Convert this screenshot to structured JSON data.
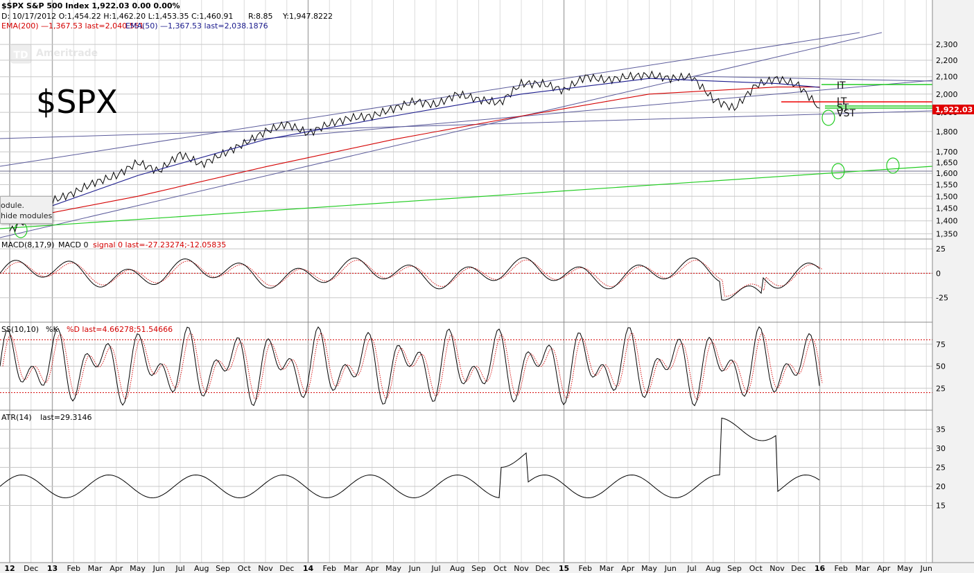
{
  "header": {
    "title": "$SPX S&P 500 Index  1,922.03  0.00  0.00%",
    "ohlc": "D: 10/17/2012  O:1,454.22  H:1,462.20  L:1,453.35  C:1,460.91",
    "r": "R:8.85",
    "y": "Y:1,947.8222",
    "ema200": "EMA(200) —1,367.53 last=2,040.551",
    "ema50": "EMA(50) —1,367.53 last=2,038.1876"
  },
  "watermark": {
    "logo_text": "Ameritrade",
    "logo_mark": "TD"
  },
  "big_label": "$SPX",
  "tooltip": {
    "line1": "odule.",
    "line2": "hide modules."
  },
  "price_badge": "1,922.03",
  "colors": {
    "price": "#000000",
    "ema200": "#d40000",
    "ema50": "#1a1a8c",
    "trend": "#5a5a9a",
    "green": "#22cc22",
    "red": "#ee0000",
    "grid": "#c8c8c8",
    "panel_bg": "#ffffff",
    "axis_bg": "#f2f2f2"
  },
  "chart_data": [
    {
      "type": "line",
      "title": "$SPX S&P 500 Index",
      "y_ticks": [
        "2,300",
        "2,200",
        "2,100",
        "2,000",
        "1,900",
        "1,800",
        "1,700",
        "1,650",
        "1,600",
        "1,550",
        "1,500",
        "1,450",
        "1,400",
        "1,350"
      ],
      "y_tick_values": [
        2300,
        2200,
        2100,
        2000,
        1900,
        1800,
        1700,
        1650,
        1600,
        1550,
        1500,
        1450,
        1400,
        1350
      ],
      "y_scale": "log",
      "ylim": [
        1330,
        2420
      ],
      "x_ticks": [
        "12",
        "Dec",
        "13",
        "Feb",
        "Mar",
        "Apr",
        "May",
        "Jun",
        "Jul",
        "Aug",
        "Sep",
        "Oct",
        "Nov",
        "Dec",
        "14",
        "Feb",
        "Mar",
        "Apr",
        "May",
        "Jun",
        "Jul",
        "Aug",
        "Sep",
        "Oct",
        "Nov",
        "Dec",
        "15",
        "Feb",
        "Mar",
        "Apr",
        "May",
        "Jun",
        "Jul",
        "Aug",
        "Sep",
        "Oct",
        "Nov",
        "Dec",
        "16",
        "Feb",
        "Mar",
        "Apr",
        "May",
        "Jun"
      ],
      "x_year_ticks": [
        "12",
        "13",
        "14",
        "15",
        "16"
      ],
      "series": [
        {
          "name": "$SPX",
          "x": [
            "2012-11",
            "2012-12",
            "2013-01",
            "2013-02",
            "2013-03",
            "2013-04",
            "2013-05",
            "2013-06",
            "2013-07",
            "2013-08",
            "2013-09",
            "2013-10",
            "2013-11",
            "2013-12",
            "2014-01",
            "2014-02",
            "2014-03",
            "2014-04",
            "2014-05",
            "2014-06",
            "2014-07",
            "2014-08",
            "2014-09",
            "2014-10",
            "2014-11",
            "2014-12",
            "2015-01",
            "2015-02",
            "2015-03",
            "2015-04",
            "2015-05",
            "2015-06",
            "2015-07",
            "2015-08",
            "2015-09",
            "2015-10",
            "2015-11",
            "2015-12",
            "2016-01"
          ],
          "values": [
            1360,
            1420,
            1480,
            1515,
            1560,
            1590,
            1650,
            1610,
            1690,
            1640,
            1690,
            1740,
            1800,
            1840,
            1790,
            1840,
            1870,
            1880,
            1920,
            1960,
            1940,
            2000,
            1970,
            1950,
            2060,
            2060,
            2020,
            2100,
            2080,
            2100,
            2110,
            2090,
            2100,
            1970,
            1920,
            2050,
            2090,
            2050,
            1922
          ]
        },
        {
          "name": "EMA(200)",
          "x": [
            "2012-11",
            "2013-05",
            "2013-11",
            "2014-05",
            "2014-11",
            "2015-05",
            "2015-11",
            "2016-01"
          ],
          "values": [
            1400,
            1500,
            1630,
            1760,
            1880,
            2000,
            2040,
            2040
          ]
        },
        {
          "name": "EMA(50)",
          "x": [
            "2012-11",
            "2013-05",
            "2013-11",
            "2014-05",
            "2014-11",
            "2015-05",
            "2015-11",
            "2016-01"
          ],
          "values": [
            1400,
            1590,
            1760,
            1880,
            2000,
            2090,
            2060,
            2038
          ]
        }
      ],
      "annotations": [
        "IT",
        "LT",
        "ST",
        "VST"
      ]
    },
    {
      "type": "line",
      "title": "MACD(8,17,9)",
      "legend": [
        "MACD 0",
        "signal 0 last=-27.23274;-12.05835"
      ],
      "y_ticks": [
        "25",
        "0",
        "-25"
      ],
      "ylim": [
        -50,
        35
      ]
    },
    {
      "type": "line",
      "title": "SS(10,10)",
      "legend": [
        "%K",
        "%D last=4.66278;51.54666"
      ],
      "y_ticks": [
        "75",
        "50",
        "25"
      ],
      "ylim": [
        0,
        100
      ]
    },
    {
      "type": "line",
      "title": "ATR(14)",
      "legend": [
        "last=29.3146"
      ],
      "y_ticks": [
        "35",
        "30",
        "25",
        "20",
        "15"
      ],
      "ylim": [
        0,
        40
      ]
    }
  ]
}
